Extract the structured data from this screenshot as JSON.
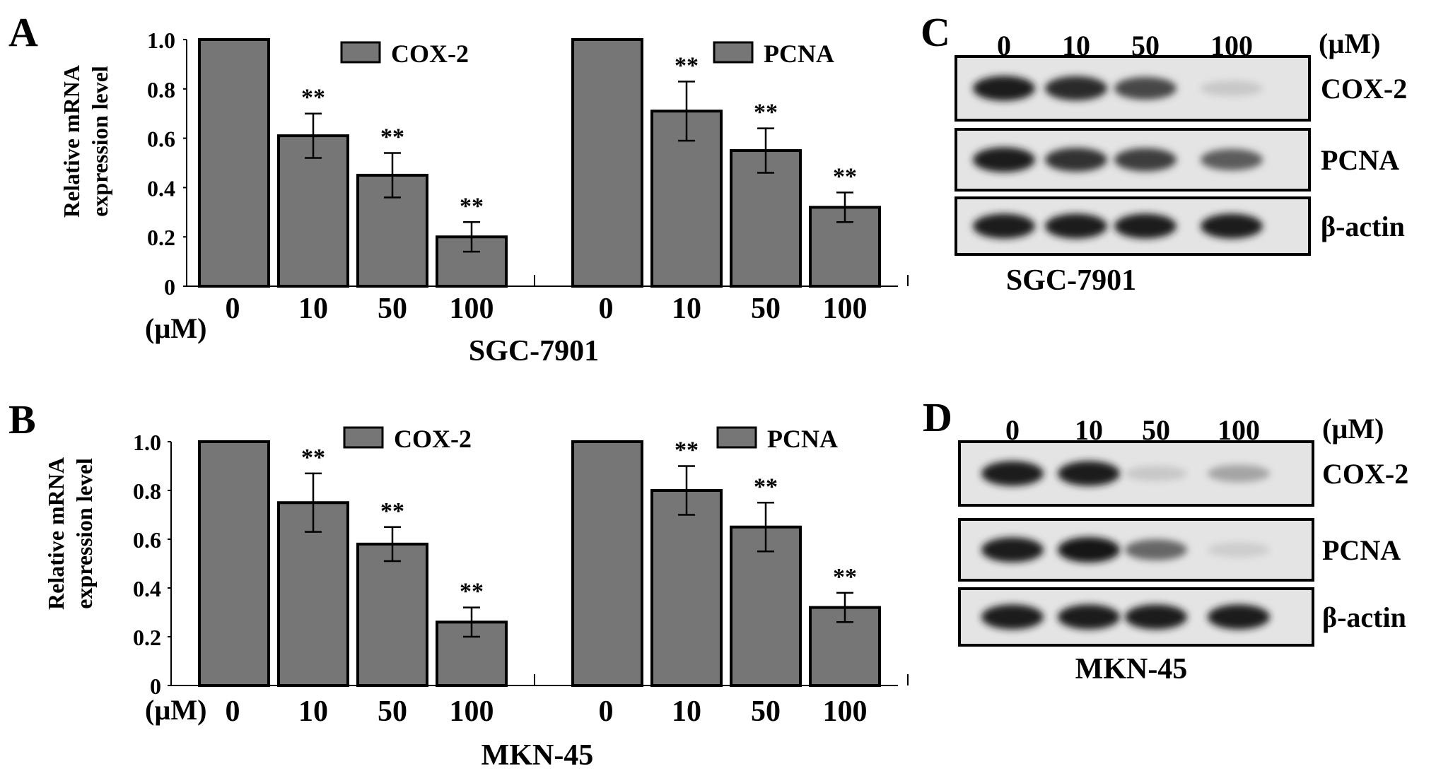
{
  "colors": {
    "bar": "#767676",
    "outline": "#000000",
    "background": "#ffffff"
  },
  "panels": {
    "A": {
      "label": "A",
      "cell_line": "SGC-7901"
    },
    "B": {
      "label": "B",
      "cell_line": "MKN-45"
    },
    "C": {
      "label": "C",
      "cell_line": "SGC-7901"
    },
    "D": {
      "label": "D",
      "cell_line": "MKN-45"
    }
  },
  "shared": {
    "ylabel_line1": "Relative mRNA",
    "ylabel_line2": "expression level",
    "unit": "(µM)",
    "significance": "**",
    "doses": [
      "0",
      "10",
      "50",
      "100"
    ],
    "blot_rows": [
      "COX-2",
      "PCNA",
      "β-actin"
    ]
  },
  "chart_data": [
    {
      "panel": "A",
      "type": "bar",
      "xlabel": "SGC-7901",
      "ylabel": "Relative mRNA expression level",
      "ylim": [
        0,
        1.0
      ],
      "yticks": [
        "0",
        "0.2",
        "0.4",
        "0.6",
        "0.8",
        "1.0"
      ],
      "categories": [
        "0",
        "10",
        "50",
        "100"
      ],
      "series": [
        {
          "name": "COX-2",
          "values": [
            1.0,
            0.61,
            0.45,
            0.2
          ],
          "errors": [
            0,
            0.09,
            0.09,
            0.06
          ],
          "significance": [
            "",
            "**",
            "**",
            "**"
          ]
        },
        {
          "name": "PCNA",
          "values": [
            1.0,
            0.71,
            0.55,
            0.32
          ],
          "errors": [
            0,
            0.12,
            0.09,
            0.06
          ],
          "significance": [
            "",
            "**",
            "**",
            "**"
          ]
        }
      ]
    },
    {
      "panel": "B",
      "type": "bar",
      "xlabel": "MKN-45",
      "ylabel": "Relative mRNA expression level",
      "ylim": [
        0,
        1.0
      ],
      "yticks": [
        "0",
        "0.2",
        "0.4",
        "0.6",
        "0.8",
        "1.0"
      ],
      "categories": [
        "0",
        "10",
        "50",
        "100"
      ],
      "series": [
        {
          "name": "COX-2",
          "values": [
            1.0,
            0.75,
            0.58,
            0.26
          ],
          "errors": [
            0,
            0.12,
            0.07,
            0.06
          ],
          "significance": [
            "",
            "**",
            "**",
            "**"
          ]
        },
        {
          "name": "PCNA",
          "values": [
            1.0,
            0.8,
            0.65,
            0.32
          ],
          "errors": [
            0,
            0.1,
            0.1,
            0.06
          ],
          "significance": [
            "",
            "**",
            "**",
            "**"
          ]
        }
      ]
    }
  ],
  "western_blots": [
    {
      "panel": "C",
      "cell_line": "SGC-7901",
      "doses": [
        "0",
        "10",
        "50",
        "100"
      ],
      "rows": [
        {
          "name": "COX-2",
          "intensity": [
            0.95,
            0.9,
            0.75,
            0.12
          ]
        },
        {
          "name": "PCNA",
          "intensity": [
            0.95,
            0.85,
            0.8,
            0.65
          ]
        },
        {
          "name": "β-actin",
          "intensity": [
            0.95,
            0.95,
            0.95,
            0.95
          ]
        }
      ]
    },
    {
      "panel": "D",
      "cell_line": "MKN-45",
      "doses": [
        "0",
        "10",
        "50",
        "100"
      ],
      "rows": [
        {
          "name": "COX-2",
          "intensity": [
            0.95,
            0.95,
            0.12,
            0.3
          ]
        },
        {
          "name": "PCNA",
          "intensity": [
            0.95,
            1.0,
            0.6,
            0.1
          ]
        },
        {
          "name": "β-actin",
          "intensity": [
            0.95,
            0.95,
            0.95,
            0.95
          ]
        }
      ]
    }
  ]
}
